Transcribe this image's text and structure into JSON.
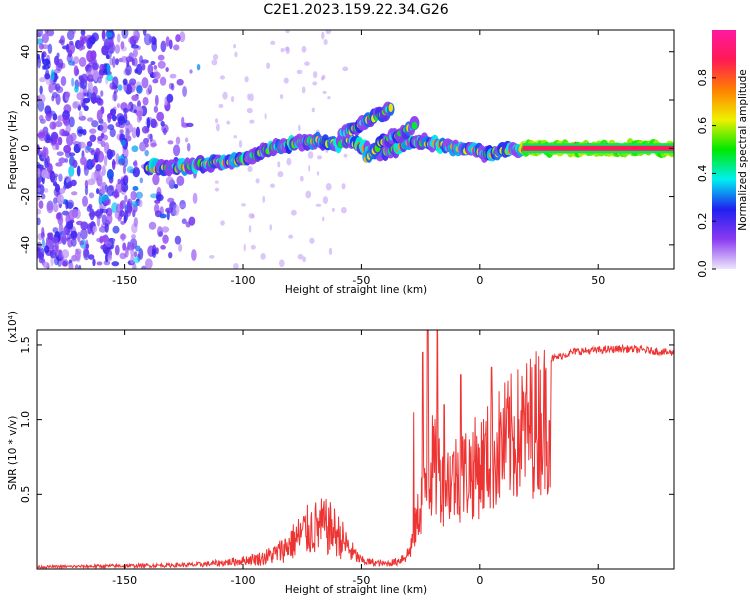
{
  "figure_title": "C2E1.2023.159.22.34.G26",
  "colors": {
    "snr_line": "#ee3333",
    "axis": "#000000",
    "background": "#ffffff"
  },
  "chart_data": [
    {
      "type": "heatmap",
      "title": "C2E1.2023.159.22.34.G26",
      "xlabel": "Height of straight line (km)",
      "ylabel": "Frequency (Hz)",
      "xlim": [
        -187,
        82
      ],
      "ylim": [
        -50,
        49
      ],
      "x_ticks": [
        -150,
        -100,
        -50,
        0,
        50
      ],
      "x_tick_labels": [
        "-150",
        "-100",
        "-50",
        "0",
        "50"
      ],
      "y_ticks": [
        -40,
        -20,
        0,
        20,
        40
      ],
      "y_tick_labels": [
        "-40",
        "-20",
        "0",
        "20",
        "40"
      ],
      "colorbar": {
        "label": "Normalized spectral amplitude",
        "range": [
          0,
          1
        ],
        "ticks": [
          0,
          0.2,
          0.4,
          0.6,
          0.8
        ],
        "tick_labels": [
          "0.0",
          "0.2",
          "0.4",
          "0.6",
          "0.8"
        ],
        "colormap": [
          "#ece6fb",
          "#8a3af0",
          "#2020f0",
          "#00f0f0",
          "#00e800",
          "#f0f000",
          "#ff8000",
          "#ff1a55",
          "#ff1aa0"
        ]
      },
      "noise_region": {
        "x_range": [
          -187,
          -115
        ],
        "amplitude_range": [
          0.05,
          0.25
        ]
      },
      "main_ridge": [
        [
          -140,
          -8
        ],
        [
          -130,
          -8
        ],
        [
          -120,
          -7
        ],
        [
          -110,
          -6
        ],
        [
          -100,
          -5
        ],
        [
          -90,
          -1
        ],
        [
          -80,
          2
        ],
        [
          -70,
          3
        ],
        [
          -60,
          2
        ],
        [
          -55,
          3
        ],
        [
          -50,
          1
        ],
        [
          -45,
          -1
        ],
        [
          -40,
          -2
        ],
        [
          -35,
          0
        ],
        [
          -30,
          3
        ],
        [
          -25,
          3
        ],
        [
          -20,
          2
        ],
        [
          -10,
          0
        ],
        [
          0,
          -1
        ],
        [
          3,
          -3
        ],
        [
          6,
          -2
        ],
        [
          10,
          -1
        ],
        [
          20,
          0
        ],
        [
          40,
          0
        ],
        [
          60,
          0
        ],
        [
          82,
          0
        ]
      ],
      "upper_branch": [
        [
          -58,
          6
        ],
        [
          -50,
          10
        ],
        [
          -45,
          13
        ],
        [
          -40,
          15
        ],
        [
          -37,
          17
        ]
      ],
      "lower_branch": [
        [
          -48,
          -4
        ],
        [
          -42,
          2
        ],
        [
          -36,
          5
        ],
        [
          -30,
          8
        ],
        [
          -27,
          10
        ]
      ]
    },
    {
      "type": "line",
      "xlabel": "Height of straight line (km)",
      "ylabel": "SNR (10 * v/v)",
      "y_multiplier_label": "(x10⁴)",
      "xlim": [
        -187,
        82
      ],
      "ylim": [
        0,
        1.6
      ],
      "x_ticks": [
        -150,
        -100,
        -50,
        0,
        50
      ],
      "x_tick_labels": [
        "-150",
        "-100",
        "-50",
        "0",
        "50"
      ],
      "y_ticks": [
        0.5,
        1.0,
        1.5
      ],
      "y_tick_labels": [
        "0.5",
        "1.0",
        "1.5"
      ],
      "series": [
        {
          "name": "SNR",
          "envelope_x": [
            -187,
            -150,
            -120,
            -108,
            -100,
            -92,
            -86,
            -82,
            -78,
            -74,
            -70,
            -66,
            -62,
            -58,
            -55,
            -52,
            -50,
            -45,
            -40,
            -35,
            -30,
            -27,
            -25,
            -22,
            -20,
            -15,
            -10,
            -5,
            0,
            5,
            10,
            15,
            20,
            25,
            30,
            40,
            50,
            60,
            70,
            82
          ],
          "envelope_y": [
            0.02,
            0.03,
            0.04,
            0.06,
            0.08,
            0.11,
            0.16,
            0.22,
            0.3,
            0.38,
            0.42,
            0.44,
            0.4,
            0.3,
            0.2,
            0.12,
            0.08,
            0.06,
            0.05,
            0.07,
            0.15,
            0.4,
            0.6,
            0.85,
            0.95,
            0.8,
            0.85,
            0.9,
            0.95,
            1.05,
            1.15,
            1.22,
            1.3,
            1.38,
            1.42,
            1.47,
            1.48,
            1.49,
            1.48,
            1.46
          ],
          "spikes": [
            [
              -28,
              1.05
            ],
            [
              -24,
              1.45
            ],
            [
              -22,
              1.6
            ],
            [
              -18,
              1.6
            ],
            [
              -15,
              1.1
            ],
            [
              -8,
              1.3
            ],
            [
              5,
              1.35
            ]
          ]
        }
      ]
    }
  ]
}
